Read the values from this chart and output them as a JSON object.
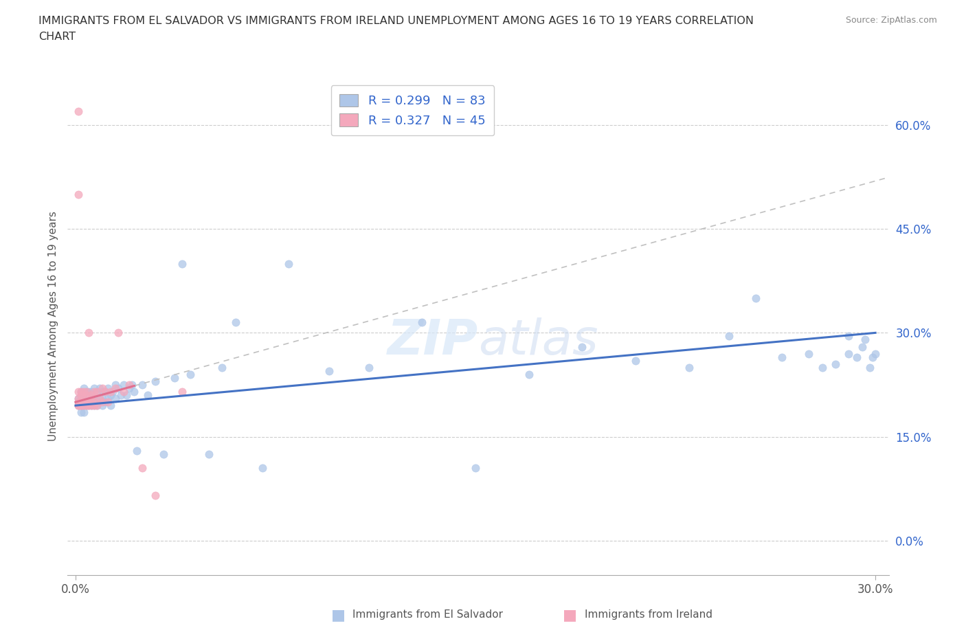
{
  "title_line1": "IMMIGRANTS FROM EL SALVADOR VS IMMIGRANTS FROM IRELAND UNEMPLOYMENT AMONG AGES 16 TO 19 YEARS CORRELATION",
  "title_line2": "CHART",
  "source": "Source: ZipAtlas.com",
  "ylabel": "Unemployment Among Ages 16 to 19 years",
  "R_salvador": 0.299,
  "N_salvador": 83,
  "R_ireland": 0.327,
  "N_ireland": 45,
  "el_salvador_color": "#aec6e8",
  "ireland_color": "#f4a8bc",
  "regression_salvador_color": "#4472c4",
  "regression_ireland_color": "#e07090",
  "regression_ireland_dash_color": "#c0c0c0",
  "watermark": "ZIPatlas",
  "legend_label_salvador": "Immigrants from El Salvador",
  "legend_label_ireland": "Immigrants from Ireland",
  "xlim_min": -0.003,
  "xlim_max": 0.305,
  "ylim_min": -0.05,
  "ylim_max": 0.67,
  "ytick_vals": [
    0.0,
    0.15,
    0.3,
    0.45,
    0.6
  ],
  "ytick_labels": [
    "0.0%",
    "15.0%",
    "30.0%",
    "45.0%",
    "60.0%"
  ],
  "xtick_vals": [
    0.0,
    0.3
  ],
  "xtick_labels": [
    "0.0%",
    "30.0%"
  ],
  "el_salvador_x": [
    0.001,
    0.001,
    0.001,
    0.002,
    0.002,
    0.002,
    0.002,
    0.002,
    0.003,
    0.003,
    0.003,
    0.003,
    0.004,
    0.004,
    0.004,
    0.005,
    0.005,
    0.005,
    0.006,
    0.006,
    0.006,
    0.007,
    0.007,
    0.007,
    0.008,
    0.008,
    0.008,
    0.009,
    0.009,
    0.01,
    0.01,
    0.01,
    0.011,
    0.011,
    0.012,
    0.012,
    0.013,
    0.013,
    0.014,
    0.015,
    0.015,
    0.016,
    0.017,
    0.018,
    0.019,
    0.02,
    0.021,
    0.022,
    0.023,
    0.025,
    0.027,
    0.03,
    0.033,
    0.037,
    0.04,
    0.043,
    0.05,
    0.055,
    0.06,
    0.07,
    0.08,
    0.095,
    0.11,
    0.13,
    0.15,
    0.17,
    0.19,
    0.21,
    0.23,
    0.245,
    0.255,
    0.265,
    0.275,
    0.28,
    0.285,
    0.29,
    0.293,
    0.296,
    0.298,
    0.299,
    0.3,
    0.295,
    0.29
  ],
  "el_salvador_y": [
    0.195,
    0.2,
    0.205,
    0.185,
    0.2,
    0.215,
    0.195,
    0.21,
    0.195,
    0.205,
    0.22,
    0.185,
    0.2,
    0.215,
    0.195,
    0.2,
    0.215,
    0.195,
    0.205,
    0.195,
    0.215,
    0.205,
    0.195,
    0.22,
    0.2,
    0.215,
    0.195,
    0.205,
    0.22,
    0.195,
    0.215,
    0.205,
    0.2,
    0.215,
    0.205,
    0.22,
    0.21,
    0.195,
    0.215,
    0.225,
    0.205,
    0.22,
    0.21,
    0.225,
    0.21,
    0.22,
    0.225,
    0.215,
    0.13,
    0.225,
    0.21,
    0.23,
    0.125,
    0.235,
    0.4,
    0.24,
    0.125,
    0.25,
    0.315,
    0.105,
    0.4,
    0.245,
    0.25,
    0.315,
    0.105,
    0.24,
    0.28,
    0.26,
    0.25,
    0.295,
    0.35,
    0.265,
    0.27,
    0.25,
    0.255,
    0.27,
    0.265,
    0.29,
    0.25,
    0.265,
    0.27,
    0.28,
    0.295
  ],
  "ireland_x": [
    0.001,
    0.001,
    0.001,
    0.001,
    0.001,
    0.001,
    0.001,
    0.002,
    0.002,
    0.002,
    0.002,
    0.002,
    0.002,
    0.003,
    0.003,
    0.003,
    0.003,
    0.004,
    0.004,
    0.004,
    0.004,
    0.005,
    0.005,
    0.005,
    0.006,
    0.006,
    0.006,
    0.007,
    0.007,
    0.007,
    0.008,
    0.008,
    0.009,
    0.01,
    0.01,
    0.011,
    0.012,
    0.013,
    0.015,
    0.016,
    0.018,
    0.02,
    0.025,
    0.03,
    0.04
  ],
  "ireland_y": [
    0.195,
    0.2,
    0.205,
    0.215,
    0.195,
    0.62,
    0.5,
    0.195,
    0.2,
    0.21,
    0.195,
    0.215,
    0.2,
    0.195,
    0.2,
    0.215,
    0.205,
    0.195,
    0.21,
    0.2,
    0.215,
    0.195,
    0.2,
    0.3,
    0.195,
    0.205,
    0.21,
    0.195,
    0.215,
    0.2,
    0.195,
    0.215,
    0.205,
    0.2,
    0.22,
    0.215,
    0.2,
    0.215,
    0.22,
    0.3,
    0.215,
    0.225,
    0.105,
    0.065,
    0.215
  ],
  "ireland_regression_x0": 0.0,
  "ireland_regression_x1": 0.155,
  "ireland_regression_y0": 0.2,
  "ireland_regression_y1": 0.365,
  "salvador_regression_x0": 0.0,
  "salvador_regression_x1": 0.3,
  "salvador_regression_y0": 0.195,
  "salvador_regression_y1": 0.3
}
